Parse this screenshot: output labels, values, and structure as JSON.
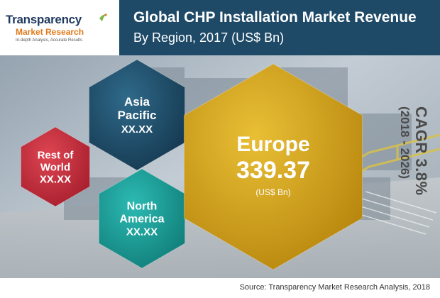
{
  "logo": {
    "name": "Transparency",
    "sub": "Market Research",
    "tagline": "In-depth Analysis, Accurate Results"
  },
  "header": {
    "title_line1": "Global CHP Installation Market Revenue",
    "title_line2": "By Region, 2017 (US$ Bn)"
  },
  "cagr": {
    "label": "CAGR 3.8%",
    "period": "(2018 - 2026)"
  },
  "footer": {
    "source": "Source: Transparency Market Research Analysis, 2018"
  },
  "colors": {
    "asia_pacific": "#1f4e6c",
    "rest_of_world": "#c8313f",
    "north_america": "#1a9f9a",
    "europe": "#d2a31f",
    "header": "#1e4a68"
  },
  "chart_data": {
    "type": "bubble-hexagon",
    "title": "Global CHP Installation Market Revenue",
    "subtitle": "By Region, 2017 (US$ Bn)",
    "regions": [
      {
        "key": "asia_pacific",
        "label_lines": [
          "Asia",
          "Pacific"
        ],
        "value_text": "XX.XX"
      },
      {
        "key": "rest_of_world",
        "label_lines": [
          "Rest of",
          "World"
        ],
        "value_text": "XX.XX"
      },
      {
        "key": "north_america",
        "label_lines": [
          "North",
          "America"
        ],
        "value_text": "XX.XX"
      },
      {
        "key": "europe",
        "label_lines": [
          "Europe"
        ],
        "value": 339.37,
        "value_text": "339.37",
        "unit": "(US$ Bn)"
      }
    ]
  }
}
